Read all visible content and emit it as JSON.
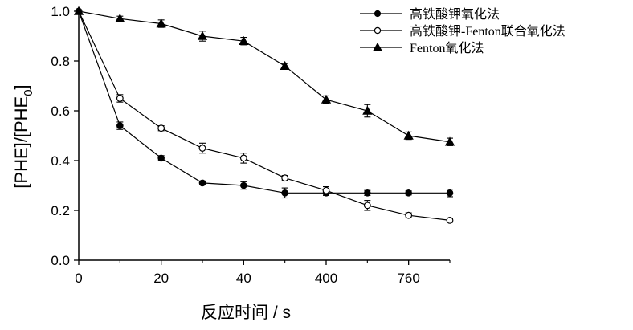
{
  "chart_data": {
    "type": "line",
    "ylabel_main": "[PHE]/[PHE",
    "ylabel_sub": "0",
    "ylabel_tail": "]",
    "xlabel": "反应时间 / s",
    "ylim": [
      0,
      1.0
    ],
    "y_ticks": [
      "0.0",
      "0.2",
      "0.4",
      "0.6",
      "0.8",
      "1.0"
    ],
    "x_ticks": [
      "0",
      "20",
      "40",
      "400",
      "760"
    ],
    "x_tick_positions": [
      0,
      20,
      40,
      60,
      80
    ],
    "xlim": [
      0,
      90
    ],
    "grid": false,
    "legend_position": "top-right",
    "x": [
      0,
      10,
      20,
      30,
      40,
      50,
      60,
      70,
      80,
      90
    ],
    "series": [
      {
        "name": "高铁酸钾氧化法",
        "marker": "filled-circle",
        "values": [
          1.0,
          0.54,
          0.41,
          0.31,
          0.3,
          0.27,
          0.27,
          0.27,
          0.27,
          0.27
        ],
        "errors": [
          0,
          0.015,
          0.01,
          0.008,
          0.015,
          0.02,
          0.01,
          0.01,
          0.008,
          0.015
        ]
      },
      {
        "name": "高铁酸钾-Fenton联合氧化法",
        "marker": "open-circle",
        "values": [
          1.0,
          0.65,
          0.53,
          0.45,
          0.41,
          0.33,
          0.28,
          0.22,
          0.18,
          0.16
        ],
        "errors": [
          0,
          0.015,
          0.01,
          0.02,
          0.02,
          0.01,
          0.015,
          0.02,
          0.01,
          0.008
        ]
      },
      {
        "name": "Fenton氧化法",
        "marker": "filled-triangle",
        "values": [
          1.0,
          0.97,
          0.95,
          0.9,
          0.88,
          0.78,
          0.645,
          0.6,
          0.5,
          0.475
        ],
        "errors": [
          0,
          0.01,
          0.015,
          0.02,
          0.015,
          0.01,
          0.015,
          0.025,
          0.015,
          0.015
        ]
      }
    ]
  }
}
